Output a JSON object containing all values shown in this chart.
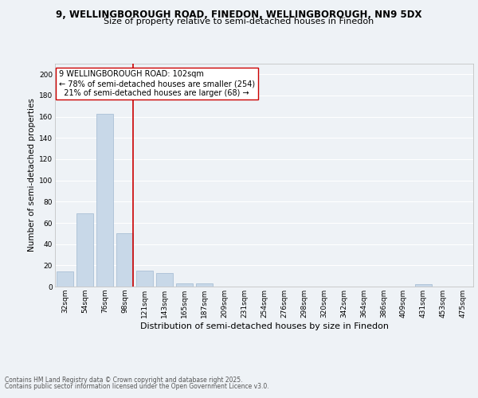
{
  "title_line1": "9, WELLINGBOROUGH ROAD, FINEDON, WELLINGBOROUGH, NN9 5DX",
  "title_line2": "Size of property relative to semi-detached houses in Finedon",
  "xlabel": "Distribution of semi-detached houses by size in Finedon",
  "ylabel": "Number of semi-detached properties",
  "footer_line1": "Contains HM Land Registry data © Crown copyright and database right 2025.",
  "footer_line2": "Contains public sector information licensed under the Open Government Licence v3.0.",
  "annotation_line1": "9 WELLINGBOROUGH ROAD: 102sqm",
  "annotation_line2": "← 78% of semi-detached houses are smaller (254)",
  "annotation_line3": "  21% of semi-detached houses are larger (68) →",
  "bin_labels": [
    "32sqm",
    "54sqm",
    "76sqm",
    "98sqm",
    "121sqm",
    "143sqm",
    "165sqm",
    "187sqm",
    "209sqm",
    "231sqm",
    "254sqm",
    "276sqm",
    "298sqm",
    "320sqm",
    "342sqm",
    "364sqm",
    "386sqm",
    "409sqm",
    "431sqm",
    "453sqm",
    "475sqm"
  ],
  "counts": [
    14,
    69,
    163,
    50,
    15,
    13,
    3,
    3,
    0,
    0,
    0,
    0,
    0,
    0,
    0,
    0,
    0,
    0,
    2,
    0,
    0
  ],
  "bar_color": "#c8d8e8",
  "bar_edge_color": "#a0b8d0",
  "vline_color": "#cc0000",
  "vline_bin_index": 3,
  "annotation_box_color": "#ffffff",
  "annotation_box_edge": "#cc0000",
  "ylim": [
    0,
    210
  ],
  "yticks": [
    0,
    20,
    40,
    60,
    80,
    100,
    120,
    140,
    160,
    180,
    200
  ],
  "bg_color": "#eef2f6",
  "grid_color": "#ffffff",
  "title_fontsize": 8.5,
  "subtitle_fontsize": 8,
  "axis_label_fontsize": 8,
  "tick_fontsize": 6.5,
  "annotation_fontsize": 7,
  "footer_fontsize": 5.5,
  "ylabel_fontsize": 7.5
}
